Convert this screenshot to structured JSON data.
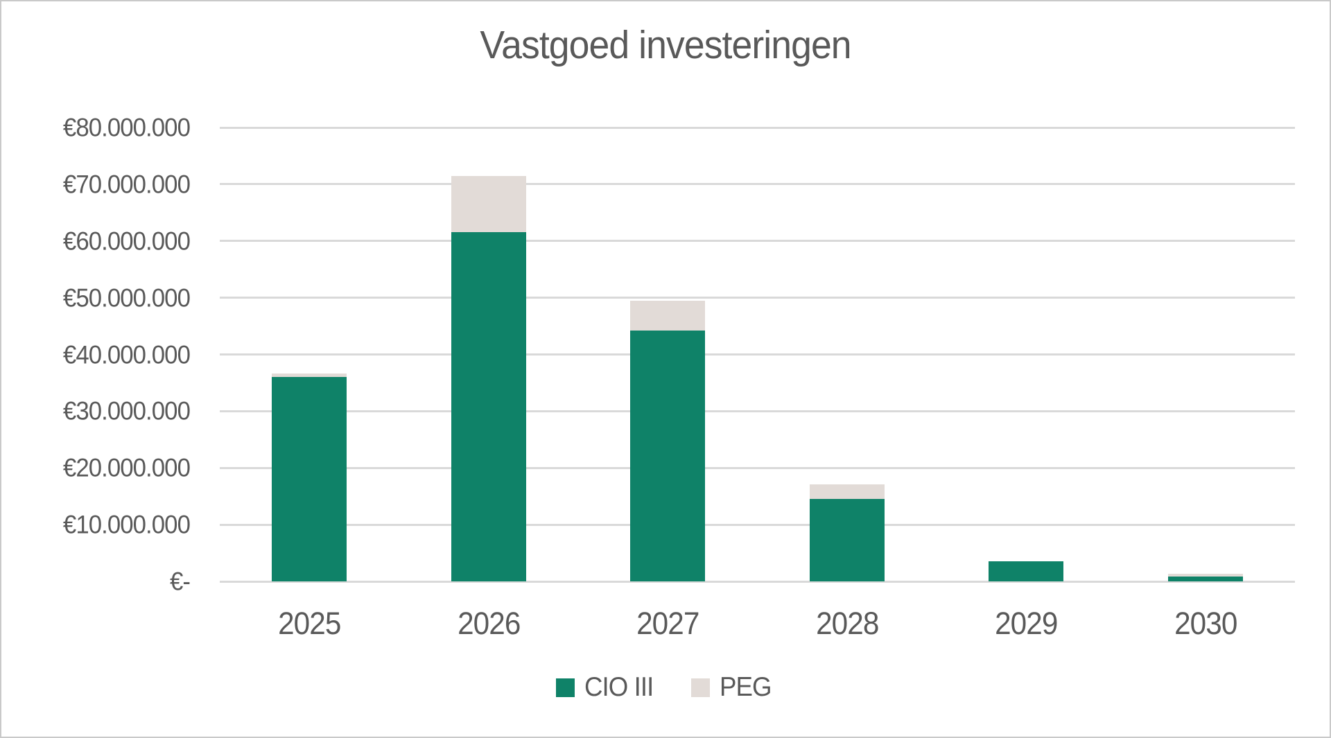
{
  "chart_data": {
    "type": "bar",
    "stacked": true,
    "title": "Vastgoed investeringen",
    "categories": [
      "2025",
      "2026",
      "2027",
      "2028",
      "2029",
      "2030"
    ],
    "series": [
      {
        "name": "CIO III",
        "color": "#0f8268",
        "values": [
          36000000,
          61500000,
          44200000,
          14500000,
          3500000,
          800000
        ]
      },
      {
        "name": "PEG",
        "color": "#e2dbd7",
        "values": [
          700000,
          10000000,
          5300000,
          2600000,
          0,
          600000
        ]
      }
    ],
    "ylim": [
      0,
      80000000
    ],
    "ytick_step": 10000000,
    "ytick_labels_top_down": [
      "€80.000.000",
      "€70.000.000",
      "€60.000.000",
      "€50.000.000",
      "€40.000.000",
      "€30.000.000",
      "€20.000.000",
      "€10.000.000",
      "€-"
    ],
    "xlabel": "",
    "ylabel": "",
    "grid": true,
    "gridline_color": "#d9d9d9",
    "text_color": "#595959",
    "background_color": "#ffffff",
    "legend_position": "bottom"
  }
}
